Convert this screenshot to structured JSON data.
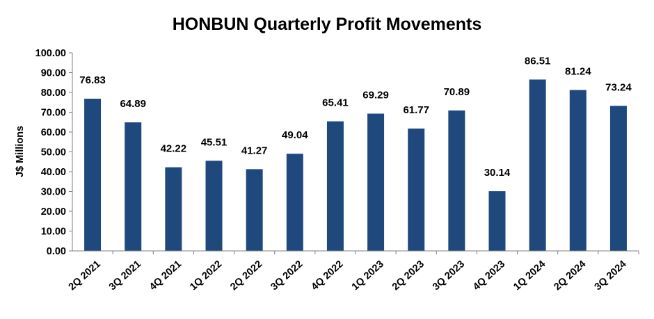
{
  "chart_data": {
    "type": "bar",
    "title": "HONBUN Quarterly Profit Movements",
    "xlabel": "",
    "ylabel": "J$ Millions",
    "categories": [
      "2Q 2021",
      "3Q 2021",
      "4Q 2021",
      "1Q 2022",
      "2Q 2022",
      "3Q 2022",
      "4Q 2022",
      "1Q 2023",
      "2Q 2023",
      "3Q 2023",
      "4Q 2023",
      "1Q 2024",
      "2Q 2024",
      "3Q 2024"
    ],
    "values": [
      76.83,
      64.89,
      42.22,
      45.51,
      41.27,
      49.04,
      65.41,
      69.29,
      61.77,
      70.89,
      30.14,
      86.51,
      81.24,
      73.24
    ],
    "data_labels": [
      "76.83",
      "64.89",
      "42.22",
      "45.51",
      "41.27",
      "49.04",
      "65.41",
      "69.29",
      "61.77",
      "70.89",
      "30.14",
      "86.51",
      "81.24",
      "73.24"
    ],
    "ylim": [
      0,
      100
    ],
    "yticks": [
      "0.00",
      "10.00",
      "20.00",
      "30.00",
      "40.00",
      "50.00",
      "60.00",
      "70.00",
      "80.00",
      "90.00",
      "100.00"
    ],
    "grid": false,
    "legend": "none",
    "bar_color": "#1f497d"
  }
}
